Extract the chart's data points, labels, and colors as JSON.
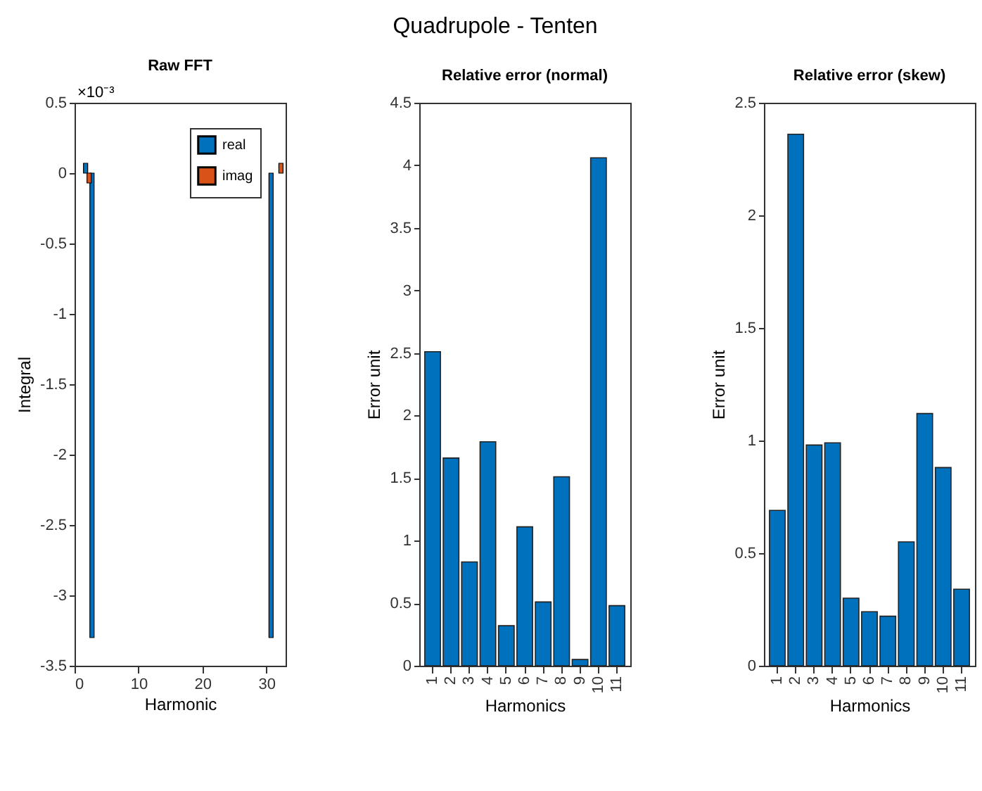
{
  "chart_data": [
    {
      "type": "bar",
      "title": "Raw FFT",
      "xlabel": "Harmonic",
      "ylabel": "Integral",
      "annotations": [
        "Quadrupole - Tenten",
        "×10⁻³"
      ],
      "x": [
        2,
        3,
        31,
        32
      ],
      "series": [
        {
          "name": "real",
          "color": "#0072bd",
          "values": [
            0.07,
            -3.3,
            -3.3,
            null
          ]
        },
        {
          "name": "imag",
          "color": "#d95319",
          "values": [
            -0.07,
            null,
            null,
            0.07
          ]
        }
      ],
      "xlim": [
        0,
        33
      ],
      "xticks": [
        0,
        10,
        20,
        30
      ],
      "ylim": [
        -3.5,
        0.5
      ],
      "yticks": [
        -3.5,
        -3,
        -2.5,
        -2,
        -1.5,
        -1,
        -0.5,
        0,
        0.5
      ],
      "legend": "top right",
      "grid": false
    },
    {
      "type": "bar",
      "title": "Relative error (normal)",
      "xlabel": "Harmonics",
      "ylabel": "Error unit",
      "categories": [
        "1",
        "2",
        "3",
        "4",
        "5",
        "6",
        "7",
        "8",
        "9",
        "10",
        "11"
      ],
      "values": [
        2.51,
        1.66,
        0.83,
        1.79,
        0.32,
        1.11,
        0.51,
        1.51,
        0.05,
        4.06,
        0.48
      ],
      "color": "#0072bd",
      "ylim": [
        0,
        4.5
      ],
      "yticks": [
        0,
        0.5,
        1,
        1.5,
        2,
        2.5,
        3,
        3.5,
        4,
        4.5
      ],
      "grid": false
    },
    {
      "type": "bar",
      "title": "Relative error (skew)",
      "xlabel": "Harmonics",
      "ylabel": "Error unit",
      "categories": [
        "1",
        "2",
        "3",
        "4",
        "5",
        "6",
        "7",
        "8",
        "9",
        "10",
        "11"
      ],
      "values": [
        0.69,
        2.36,
        0.98,
        0.99,
        0.3,
        0.24,
        0.22,
        0.55,
        1.12,
        0.88,
        0.34
      ],
      "color": "#0072bd",
      "ylim": [
        0,
        2.5
      ],
      "yticks": [
        0,
        0.5,
        1,
        1.5,
        2,
        2.5
      ],
      "grid": false
    }
  ]
}
